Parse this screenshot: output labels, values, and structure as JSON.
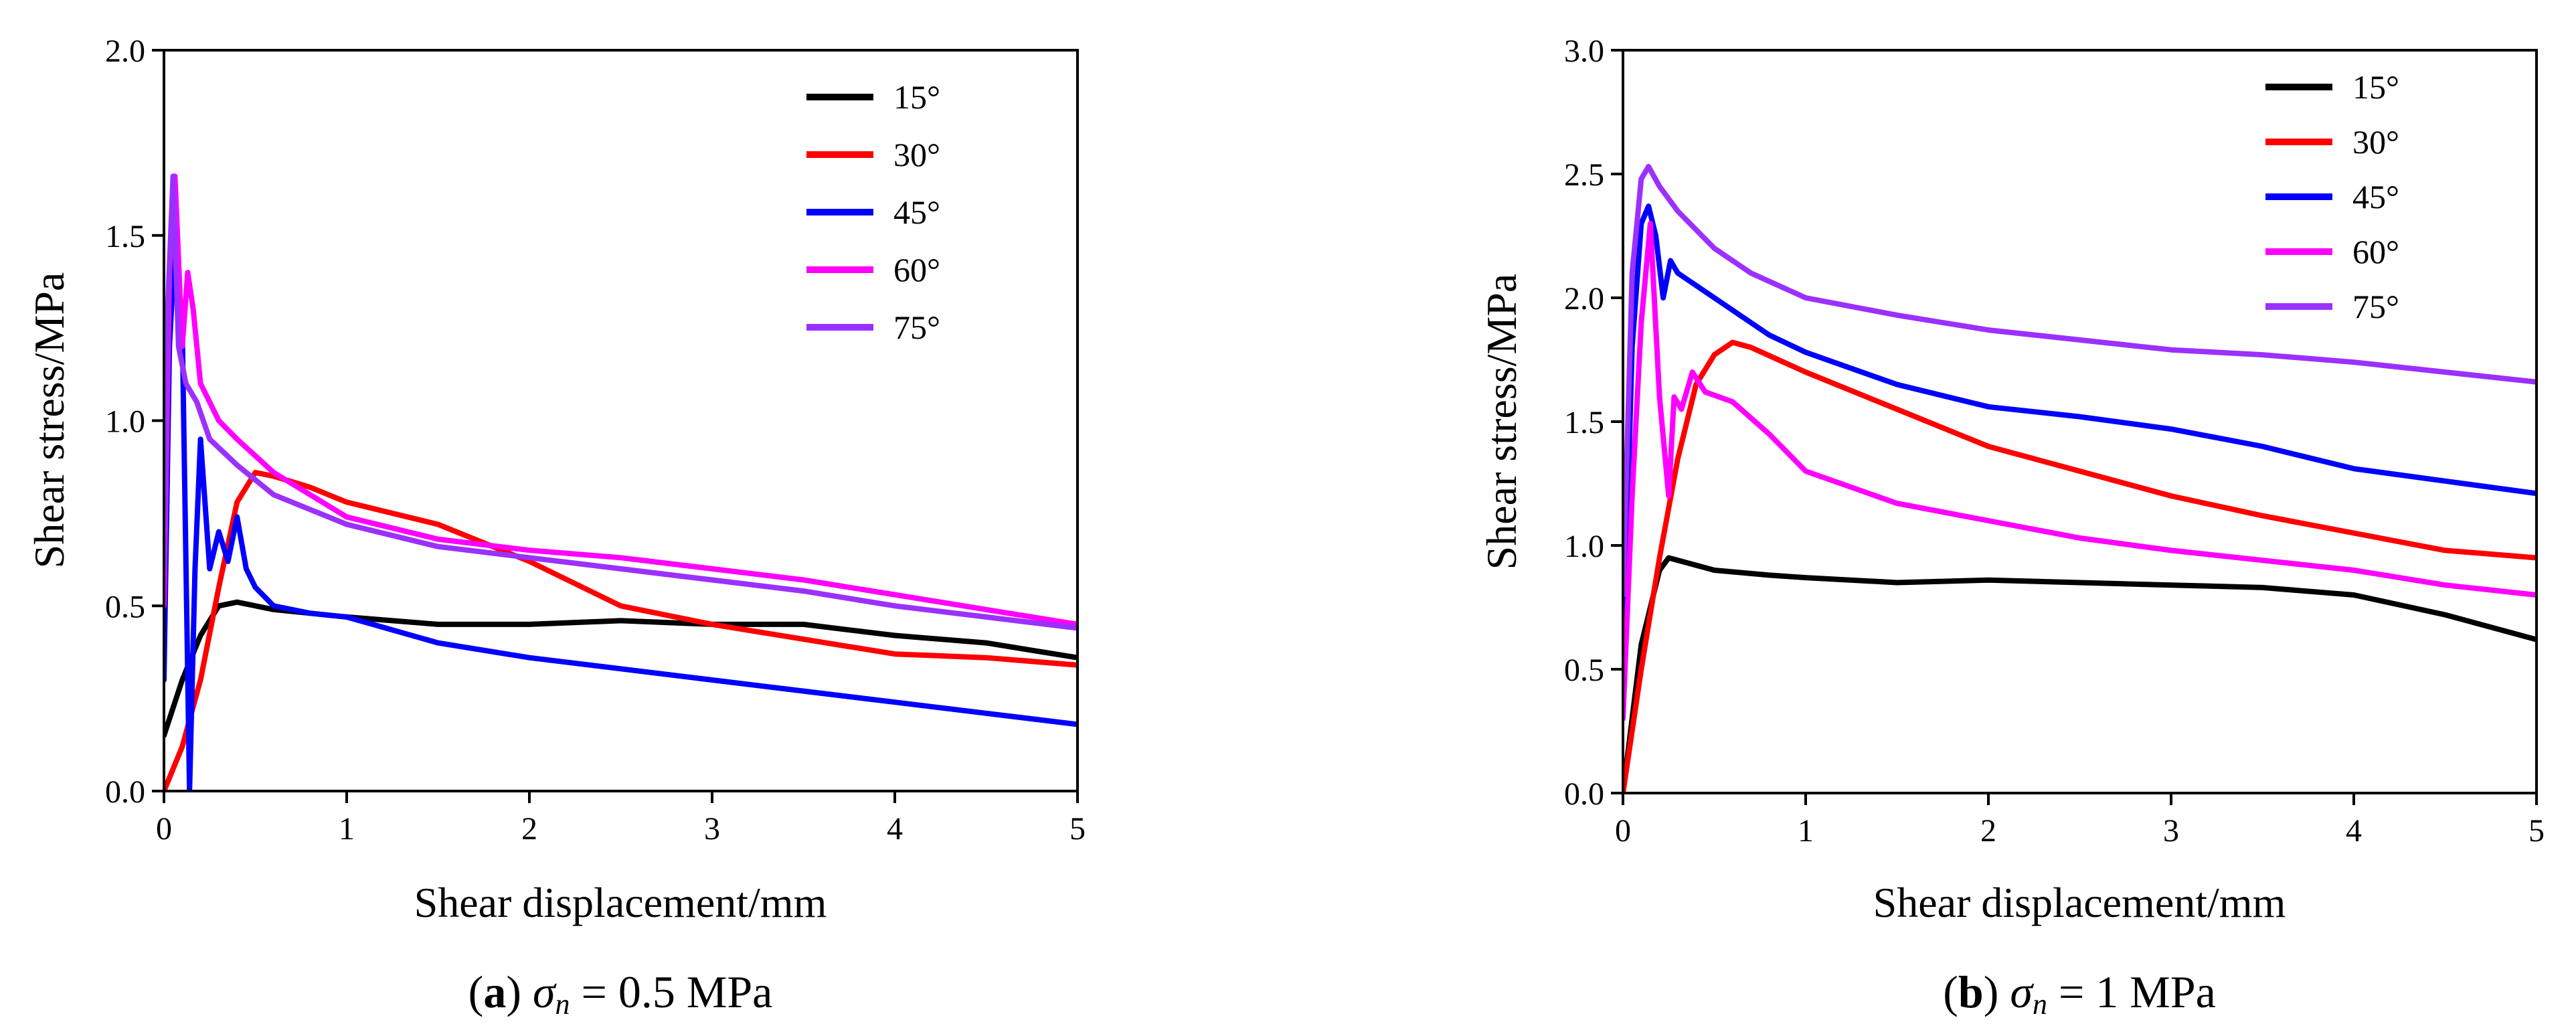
{
  "chart_data": [
    {
      "type": "line",
      "panel": "a",
      "caption": {
        "letter": "a",
        "symbol": "σ",
        "subscript": "n",
        "rest": " = 0.5 MPa"
      },
      "xlabel": "Shear displacement/mm",
      "ylabel": "Shear stress/MPa",
      "xlim": [
        0,
        5
      ],
      "ylim": [
        0,
        2.0
      ],
      "xticks": [
        0,
        1,
        2,
        3,
        4,
        5
      ],
      "yticks": [
        0.0,
        0.5,
        1.0,
        1.5,
        2.0
      ],
      "ytick_labels": [
        "0.0",
        "0.5",
        "1.0",
        "1.5",
        "2.0"
      ],
      "legend_position": "top-right",
      "series": [
        {
          "name": "15°",
          "color": "#000000",
          "x": [
            0,
            0.1,
            0.2,
            0.3,
            0.4,
            0.6,
            0.8,
            1.0,
            1.5,
            2.0,
            2.5,
            3.0,
            3.5,
            4.0,
            4.5,
            5.0
          ],
          "y": [
            0.15,
            0.3,
            0.42,
            0.5,
            0.51,
            0.49,
            0.48,
            0.47,
            0.45,
            0.45,
            0.46,
            0.45,
            0.45,
            0.42,
            0.4,
            0.36
          ]
        },
        {
          "name": "30°",
          "color": "#ff0000",
          "x": [
            0,
            0.1,
            0.2,
            0.3,
            0.4,
            0.5,
            0.6,
            0.8,
            1.0,
            1.5,
            2.0,
            2.5,
            3.0,
            3.5,
            4.0,
            4.5,
            5.0
          ],
          "y": [
            0.0,
            0.12,
            0.3,
            0.55,
            0.78,
            0.86,
            0.85,
            0.82,
            0.78,
            0.72,
            0.62,
            0.5,
            0.45,
            0.41,
            0.37,
            0.36,
            0.34
          ]
        },
        {
          "name": "45°",
          "color": "#0000ff",
          "x": [
            0,
            0.03,
            0.06,
            0.1,
            0.14,
            0.17,
            0.2,
            0.25,
            0.3,
            0.35,
            0.4,
            0.45,
            0.5,
            0.6,
            0.8,
            1.0,
            1.5,
            2.0,
            2.5,
            3.0,
            3.5,
            4.0,
            4.5,
            5.0
          ],
          "y": [
            0.3,
            1.2,
            1.48,
            1.25,
            0.0,
            0.6,
            0.95,
            0.6,
            0.7,
            0.62,
            0.74,
            0.6,
            0.55,
            0.5,
            0.48,
            0.47,
            0.4,
            0.36,
            0.33,
            0.3,
            0.27,
            0.24,
            0.21,
            0.18
          ]
        },
        {
          "name": "60°",
          "color": "#ff00ff",
          "x": [
            0,
            0.03,
            0.06,
            0.1,
            0.13,
            0.16,
            0.2,
            0.25,
            0.3,
            0.4,
            0.6,
            0.8,
            1.0,
            1.5,
            2.0,
            2.5,
            3.0,
            3.5,
            4.0,
            4.5,
            5.0
          ],
          "y": [
            0.5,
            1.4,
            1.66,
            1.2,
            1.4,
            1.3,
            1.1,
            1.05,
            1.0,
            0.95,
            0.86,
            0.8,
            0.74,
            0.68,
            0.65,
            0.63,
            0.6,
            0.57,
            0.53,
            0.49,
            0.45
          ]
        },
        {
          "name": "75°",
          "color": "#9b30ff",
          "x": [
            0,
            0.02,
            0.05,
            0.08,
            0.12,
            0.18,
            0.25,
            0.4,
            0.6,
            0.8,
            1.0,
            1.5,
            2.0,
            2.5,
            3.0,
            3.5,
            4.0,
            4.5,
            5.0
          ],
          "y": [
            0.6,
            1.3,
            1.66,
            1.2,
            1.1,
            1.05,
            0.95,
            0.88,
            0.8,
            0.76,
            0.72,
            0.66,
            0.63,
            0.6,
            0.57,
            0.54,
            0.5,
            0.47,
            0.44
          ]
        }
      ]
    },
    {
      "type": "line",
      "panel": "b",
      "caption": {
        "letter": "b",
        "symbol": "σ",
        "subscript": "n",
        "rest": " = 1 MPa"
      },
      "xlabel": "Shear displacement/mm",
      "ylabel": "Shear stress/MPa",
      "xlim": [
        0,
        5
      ],
      "ylim": [
        0,
        3.0
      ],
      "xticks": [
        0,
        1,
        2,
        3,
        4,
        5
      ],
      "yticks": [
        0.0,
        0.5,
        1.0,
        1.5,
        2.0,
        2.5,
        3.0
      ],
      "ytick_labels": [
        "0.0",
        "0.5",
        "1.0",
        "1.5",
        "2.0",
        "2.5",
        "3.0"
      ],
      "legend_position": "top-right",
      "series": [
        {
          "name": "15°",
          "color": "#000000",
          "x": [
            0,
            0.1,
            0.2,
            0.25,
            0.35,
            0.5,
            0.8,
            1.0,
            1.5,
            2.0,
            2.5,
            3.0,
            3.5,
            4.0,
            4.5,
            5.0
          ],
          "y": [
            0.0,
            0.6,
            0.9,
            0.95,
            0.93,
            0.9,
            0.88,
            0.87,
            0.85,
            0.86,
            0.85,
            0.84,
            0.83,
            0.8,
            0.72,
            0.62
          ]
        },
        {
          "name": "30°",
          "color": "#ff0000",
          "x": [
            0,
            0.1,
            0.2,
            0.3,
            0.4,
            0.5,
            0.6,
            0.7,
            1.0,
            1.5,
            2.0,
            2.5,
            3.0,
            3.5,
            4.0,
            4.5,
            5.0
          ],
          "y": [
            0.0,
            0.5,
            0.95,
            1.35,
            1.65,
            1.77,
            1.82,
            1.8,
            1.7,
            1.55,
            1.4,
            1.3,
            1.2,
            1.12,
            1.05,
            0.98,
            0.95
          ]
        },
        {
          "name": "45°",
          "color": "#0000ff",
          "x": [
            0,
            0.05,
            0.1,
            0.14,
            0.18,
            0.22,
            0.26,
            0.3,
            0.4,
            0.6,
            0.8,
            1.0,
            1.5,
            2.0,
            2.5,
            3.0,
            3.5,
            4.0,
            4.5,
            5.0
          ],
          "y": [
            0.5,
            1.8,
            2.3,
            2.37,
            2.25,
            2.0,
            2.15,
            2.1,
            2.05,
            1.95,
            1.85,
            1.78,
            1.65,
            1.56,
            1.52,
            1.47,
            1.4,
            1.31,
            1.26,
            1.21
          ]
        },
        {
          "name": "60°",
          "color": "#ff00ff",
          "x": [
            0,
            0.05,
            0.1,
            0.15,
            0.2,
            0.25,
            0.28,
            0.32,
            0.38,
            0.45,
            0.6,
            0.8,
            1.0,
            1.5,
            2.0,
            2.5,
            3.0,
            3.5,
            4.0,
            4.5,
            5.0
          ],
          "y": [
            0.3,
            1.2,
            1.9,
            2.3,
            1.6,
            1.2,
            1.6,
            1.55,
            1.7,
            1.62,
            1.58,
            1.45,
            1.3,
            1.17,
            1.1,
            1.03,
            0.98,
            0.94,
            0.9,
            0.84,
            0.8
          ]
        },
        {
          "name": "75°",
          "color": "#9b30ff",
          "x": [
            0,
            0.05,
            0.1,
            0.14,
            0.2,
            0.3,
            0.5,
            0.7,
            1.0,
            1.5,
            2.0,
            2.5,
            3.0,
            3.5,
            4.0,
            4.5,
            5.0
          ],
          "y": [
            0.8,
            2.1,
            2.48,
            2.53,
            2.45,
            2.35,
            2.2,
            2.1,
            2.0,
            1.93,
            1.87,
            1.83,
            1.79,
            1.77,
            1.74,
            1.7,
            1.66
          ]
        }
      ]
    }
  ]
}
